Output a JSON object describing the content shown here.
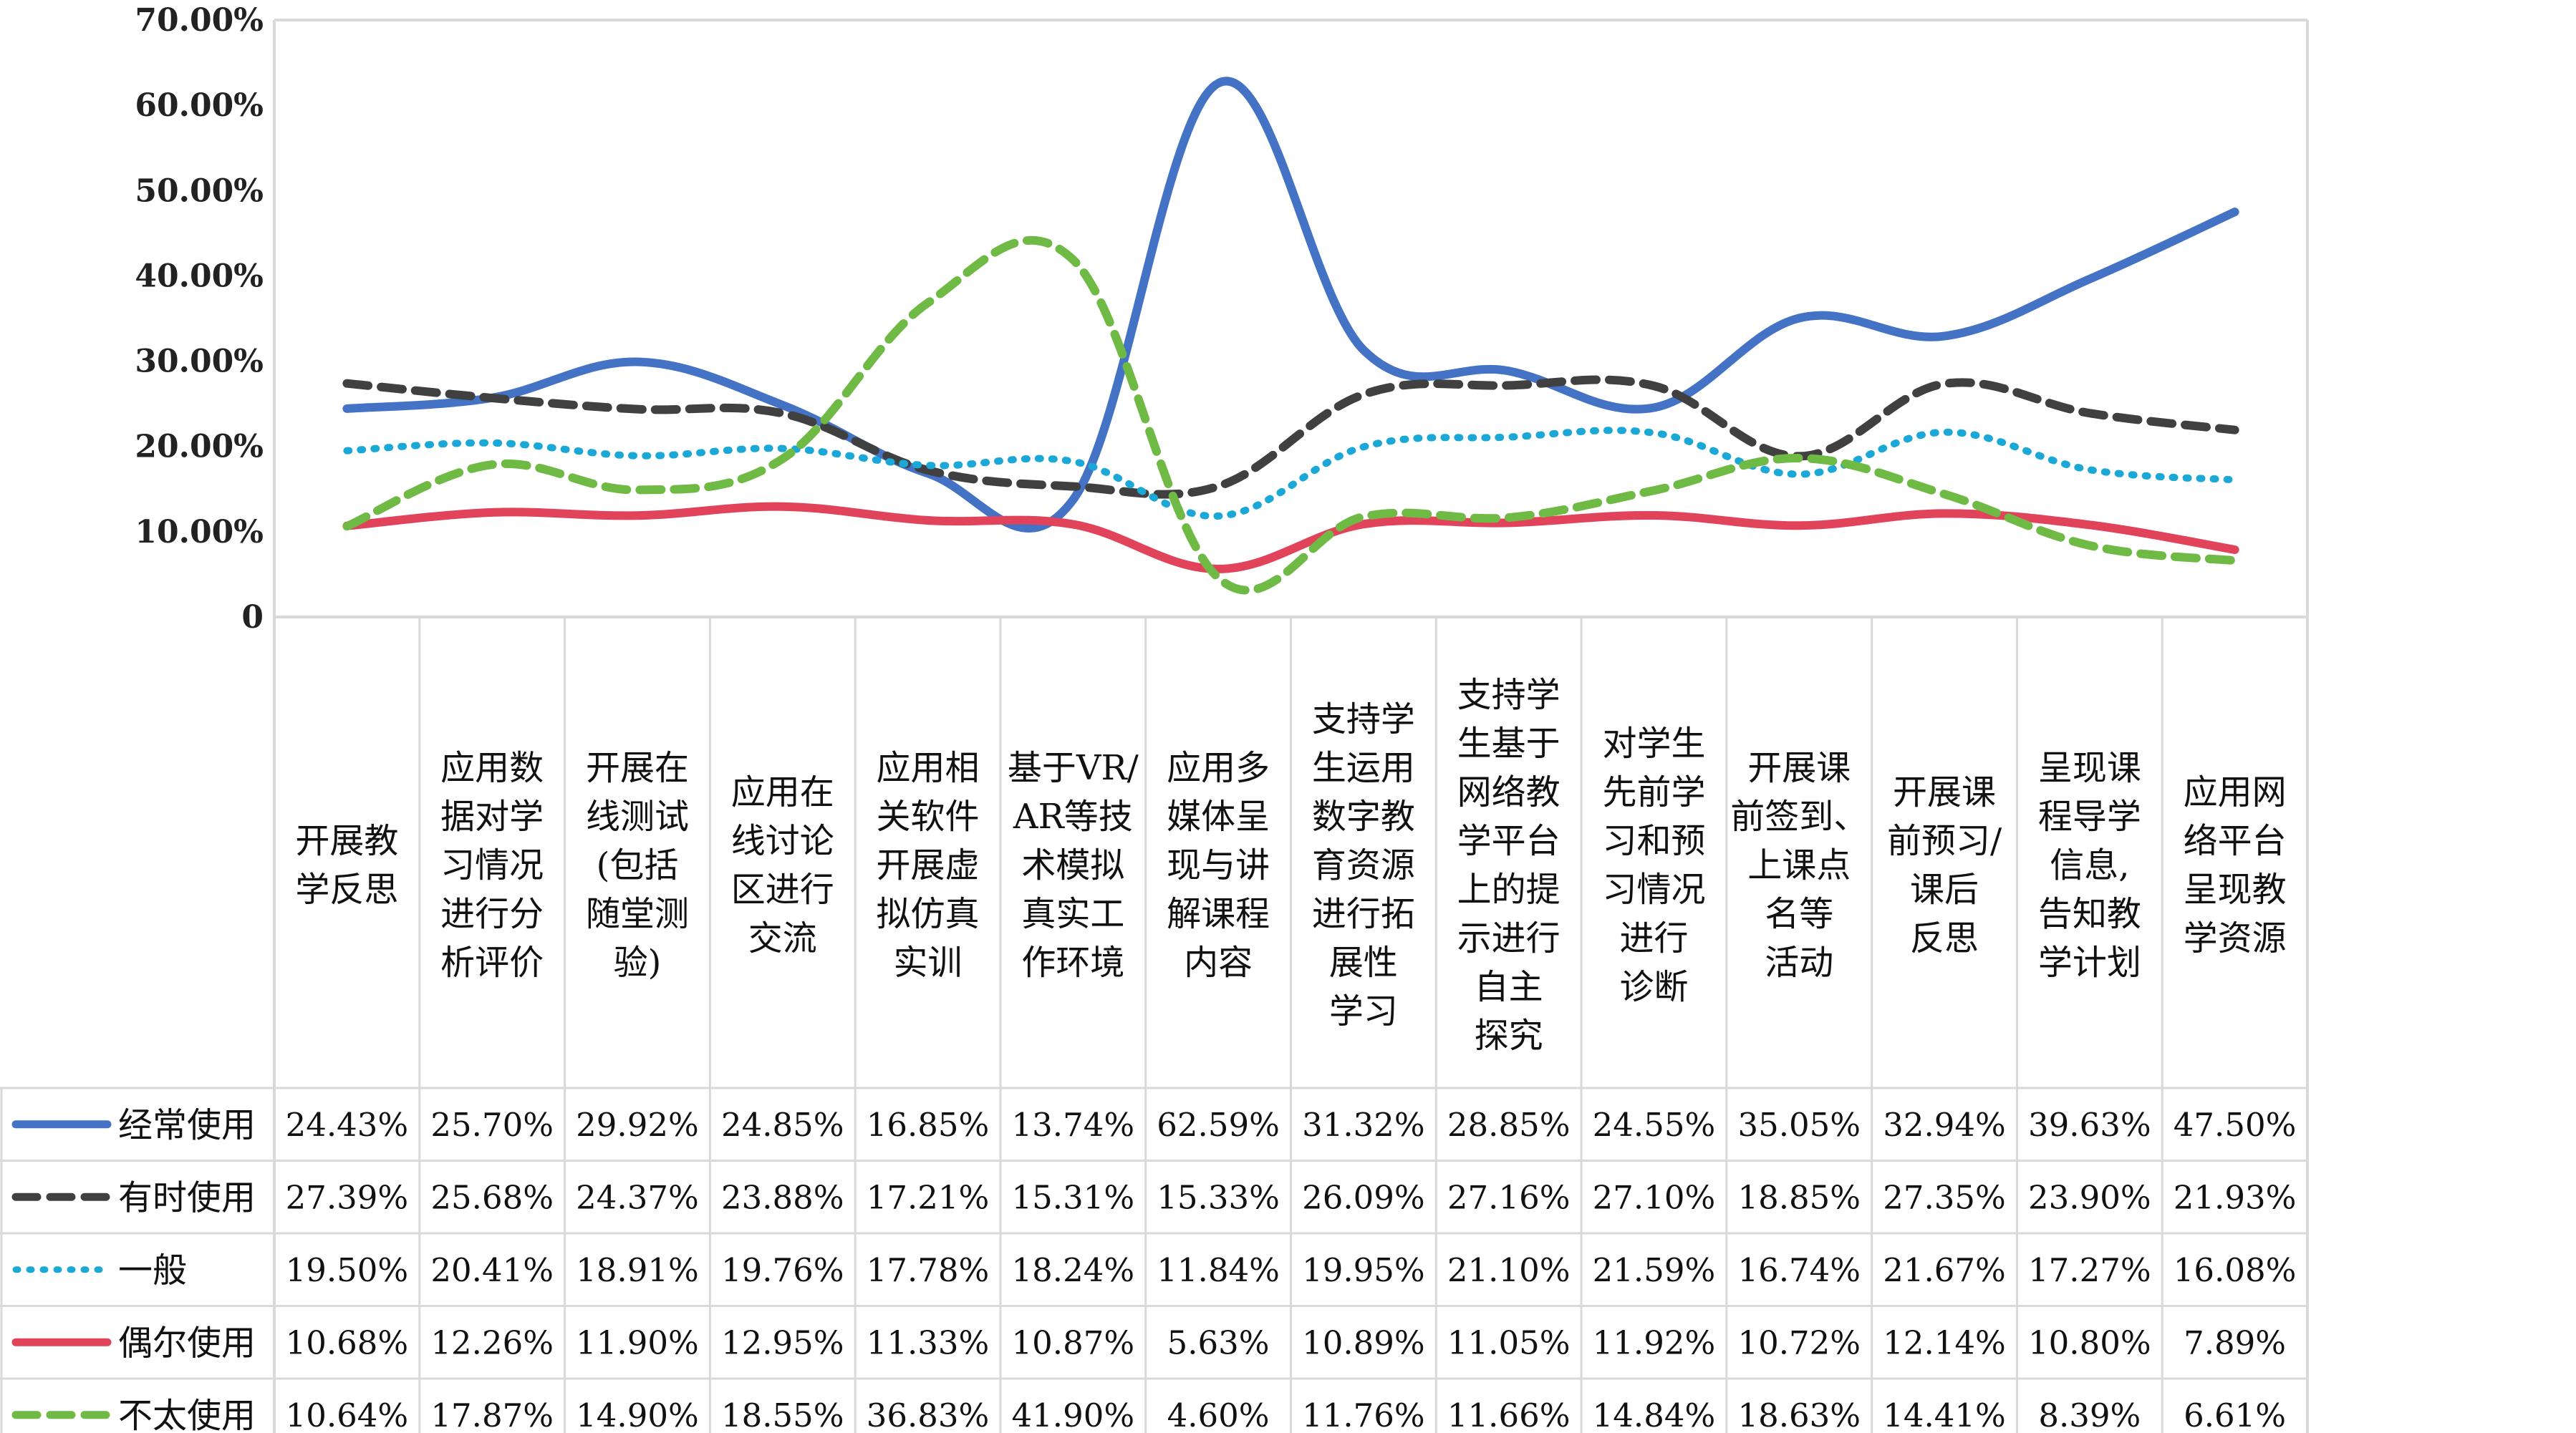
{
  "chart_data": {
    "type": "line",
    "ylim": [
      0,
      0.7
    ],
    "yticks": [
      "70.00%",
      "60.00%",
      "50.00%",
      "40.00%",
      "30.00%",
      "20.00%",
      "10.00%",
      "0"
    ],
    "ytick_values": [
      0.7,
      0.6,
      0.5,
      0.4,
      0.3,
      0.2,
      0.1,
      0
    ],
    "grid": false,
    "legend": "data-table",
    "categories": [
      [
        "开展教",
        "学反思"
      ],
      [
        "应用数",
        "据对学",
        "习情况",
        "进行分",
        "析评价"
      ],
      [
        "开展在",
        "线测试",
        "(包括",
        "随堂测",
        "验)"
      ],
      [
        "应用在",
        "线讨论",
        "区进行",
        "交流"
      ],
      [
        "应用相",
        "关软件",
        "开展虚",
        "拟仿真",
        "实训"
      ],
      [
        "基于VR/",
        "AR等技",
        "术模拟",
        "真实工",
        "作环境"
      ],
      [
        "应用多",
        "媒体呈",
        "现与讲",
        "解课程",
        "内容"
      ],
      [
        "支持学",
        "生运用",
        "数字教",
        "育资源",
        "进行拓",
        "展性",
        "学习"
      ],
      [
        "支持学",
        "生基于",
        "网络教",
        "学平台",
        "上的提",
        "示进行",
        "自主",
        "探究"
      ],
      [
        "对学生",
        "先前学",
        "习和预",
        "习情况",
        "进行",
        "诊断"
      ],
      [
        "开展课",
        "前签到、",
        "上课点",
        "名等",
        "活动"
      ],
      [
        "开展课",
        "前预习/",
        "课后",
        "反思"
      ],
      [
        "呈现课",
        "程导学",
        "信息,",
        "告知教",
        "学计划"
      ],
      [
        "应用网",
        "络平台",
        "呈现教",
        "学资源"
      ]
    ],
    "series": [
      {
        "name": "经常使用",
        "color": "#4472C4",
        "style": "solid",
        "values": [
          24.43,
          25.7,
          29.92,
          24.85,
          16.85,
          13.74,
          62.59,
          31.32,
          28.85,
          24.55,
          35.05,
          32.94,
          39.63,
          47.5
        ],
        "labels": [
          "24.43%",
          "25.70%",
          "29.92%",
          "24.85%",
          "16.85%",
          "13.74%",
          "62.59%",
          "31.32%",
          "28.85%",
          "24.55%",
          "35.05%",
          "32.94%",
          "39.63%",
          "47.50%"
        ]
      },
      {
        "name": "有时使用",
        "color": "#404040",
        "style": "dashed",
        "values": [
          27.39,
          25.68,
          24.37,
          23.88,
          17.21,
          15.31,
          15.33,
          26.09,
          27.16,
          27.1,
          18.85,
          27.35,
          23.9,
          21.93
        ],
        "labels": [
          "27.39%",
          "25.68%",
          "24.37%",
          "23.88%",
          "17.21%",
          "15.31%",
          "15.33%",
          "26.09%",
          "27.16%",
          "27.10%",
          "18.85%",
          "27.35%",
          "23.90%",
          "21.93%"
        ]
      },
      {
        "name": "一般",
        "color": "#1BA8D6",
        "style": "dotted",
        "values": [
          19.5,
          20.41,
          18.91,
          19.76,
          17.78,
          18.24,
          11.84,
          19.95,
          21.1,
          21.59,
          16.74,
          21.67,
          17.27,
          16.08
        ],
        "labels": [
          "19.50%",
          "20.41%",
          "18.91%",
          "19.76%",
          "17.78%",
          "18.24%",
          "11.84%",
          "19.95%",
          "21.10%",
          "21.59%",
          "16.74%",
          "21.67%",
          "17.27%",
          "16.08%"
        ]
      },
      {
        "name": "偶尔使用",
        "color": "#E0435A",
        "style": "solid",
        "values": [
          10.68,
          12.26,
          11.9,
          12.95,
          11.33,
          10.87,
          5.63,
          10.89,
          11.05,
          11.92,
          10.72,
          12.14,
          10.8,
          7.89
        ],
        "labels": [
          "10.68%",
          "12.26%",
          "11.90%",
          "12.95%",
          "11.33%",
          "10.87%",
          "5.63%",
          "10.89%",
          "11.05%",
          "11.92%",
          "10.72%",
          "12.14%",
          "10.80%",
          "7.89%"
        ]
      },
      {
        "name": "不太使用",
        "color": "#6FB945",
        "style": "dashed",
        "values": [
          10.64,
          17.87,
          14.9,
          18.55,
          36.83,
          41.9,
          4.6,
          11.76,
          11.66,
          14.84,
          18.63,
          14.41,
          8.39,
          6.61
        ],
        "labels": [
          "10.64%",
          "17.87%",
          "14.90%",
          "18.55%",
          "36.83%",
          "41.90%",
          "4.60%",
          "11.76%",
          "11.66%",
          "14.84%",
          "18.63%",
          "14.41%",
          "8.39%",
          "6.61%"
        ]
      }
    ]
  }
}
